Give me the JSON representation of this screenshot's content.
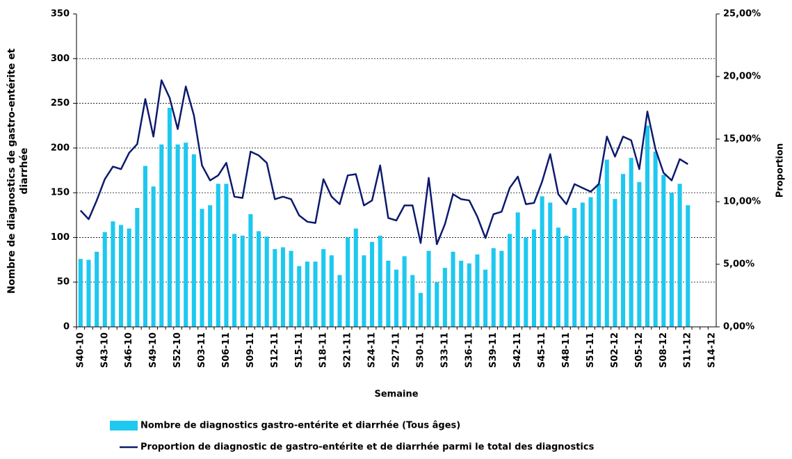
{
  "chart_data": {
    "type": "bar_line",
    "y_label": "Nombre de diagnostics de gastro-entérite et diarrhée",
    "y2_label": "Proportion",
    "x_label": "Semaine",
    "categories": [
      "S40-10",
      null,
      null,
      "S43-10",
      null,
      null,
      "S46-10",
      null,
      null,
      "S49-10",
      null,
      null,
      "S52-10",
      null,
      null,
      "S03-11",
      null,
      null,
      "S06-11",
      null,
      null,
      "S09-11",
      null,
      null,
      "S12-11",
      null,
      null,
      "S15-11",
      null,
      null,
      "S18-11",
      null,
      null,
      "S21-11",
      null,
      null,
      "S24-11",
      null,
      null,
      "S27-11",
      null,
      null,
      "S30-11",
      null,
      null,
      "S33-11",
      null,
      null,
      "S36-11",
      null,
      null,
      "S39-11",
      null,
      null,
      "S42-11",
      null,
      null,
      "S45-11",
      null,
      null,
      "S48-11",
      null,
      null,
      "S51-11",
      null,
      null,
      "S02-12",
      null,
      null,
      "S05-12",
      null,
      null,
      "S08-12",
      null,
      null,
      "S11-12",
      null,
      null,
      "S14-12"
    ],
    "series": [
      {
        "name": "Nombre de diagnostics gastro-entérite et diarrhée (Tous âges)",
        "color": "#1ec8ef",
        "kind": "bar",
        "values": [
          76,
          75,
          84,
          106,
          118,
          114,
          110,
          133,
          180,
          157,
          204,
          245,
          204,
          206,
          193,
          132,
          136,
          160,
          160,
          104,
          102,
          126,
          107,
          101,
          87,
          89,
          85,
          68,
          73,
          73,
          87,
          80,
          58,
          100,
          110,
          80,
          95,
          102,
          74,
          64,
          79,
          58,
          38,
          85,
          50,
          66,
          84,
          74,
          71,
          81,
          64,
          88,
          85,
          104,
          128,
          100,
          109,
          146,
          139,
          111,
          102,
          133,
          139,
          145,
          160,
          187,
          143,
          171,
          189,
          162,
          225,
          196,
          170,
          150,
          160,
          136,
          null,
          null,
          null
        ]
      },
      {
        "name": "Proportion de diagnostic de gastro-entérite et de diarrhée parmi le total des diagnostics",
        "color": "#0d1a6e",
        "kind": "line",
        "axis": "y2",
        "values": [
          9.3,
          8.6,
          10.1,
          11.8,
          12.8,
          12.6,
          13.9,
          14.6,
          18.2,
          15.2,
          19.7,
          18.3,
          15.8,
          19.2,
          16.9,
          12.9,
          11.7,
          12.1,
          13.1,
          10.4,
          10.3,
          14.0,
          13.7,
          13.1,
          10.2,
          10.4,
          10.2,
          8.9,
          8.4,
          8.3,
          11.8,
          10.4,
          9.8,
          12.1,
          12.2,
          9.7,
          10.1,
          12.9,
          8.7,
          8.5,
          9.7,
          9.7,
          6.7,
          11.9,
          6.6,
          8.2,
          10.6,
          10.2,
          10.1,
          8.8,
          7.1,
          9.0,
          9.2,
          11.1,
          12.0,
          9.8,
          9.9,
          11.6,
          13.8,
          10.6,
          9.8,
          11.4,
          11.1,
          10.8,
          11.4,
          15.2,
          13.6,
          15.2,
          14.9,
          12.6,
          17.2,
          14.2,
          12.3,
          11.7,
          13.4,
          13.0,
          null,
          null,
          null
        ]
      }
    ],
    "ylim": [
      0,
      350
    ],
    "yticks": [
      0,
      50,
      100,
      150,
      200,
      250,
      300,
      350
    ],
    "y2lim": [
      0,
      25
    ],
    "y2ticks": [
      {
        "value": 0,
        "label": "0,00%"
      },
      {
        "value": 5,
        "label": "5,00%"
      },
      {
        "value": 10,
        "label": "10,00%"
      },
      {
        "value": 15,
        "label": "15,00%"
      },
      {
        "value": 20,
        "label": "20,00%"
      },
      {
        "value": 25,
        "label": "25,00%"
      }
    ],
    "grid": true
  }
}
